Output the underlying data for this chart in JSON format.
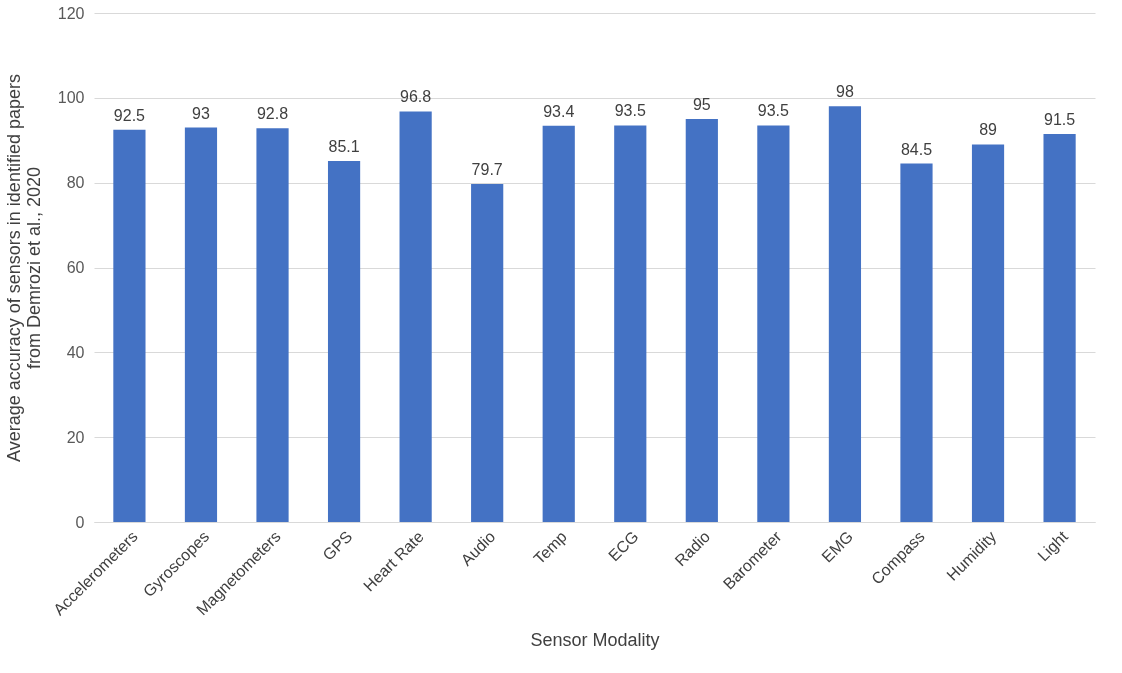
{
  "chart_data": {
    "type": "bar",
    "xlabel": "Sensor Modality",
    "ylabel": "Average accuracy of sensors in identified papers\nfrom Demrozi et al., 2020",
    "categories": [
      "Accelerometers",
      "Gyroscopes",
      "Magnetometers",
      "GPS",
      "Heart Rate",
      "Audio",
      "Temp",
      "ECG",
      "Radio",
      "Barometer",
      "EMG",
      "Compass",
      "Humidity",
      "Light"
    ],
    "values": [
      92.5,
      93,
      92.8,
      85.1,
      96.8,
      79.7,
      93.4,
      93.5,
      95,
      93.5,
      98,
      84.5,
      89,
      91.5
    ],
    "color": "#4472c4",
    "ylim": [
      0,
      120
    ],
    "yticks": [
      0,
      20,
      40,
      60,
      80,
      100,
      120
    ],
    "grid": "y",
    "data_labels": true
  }
}
